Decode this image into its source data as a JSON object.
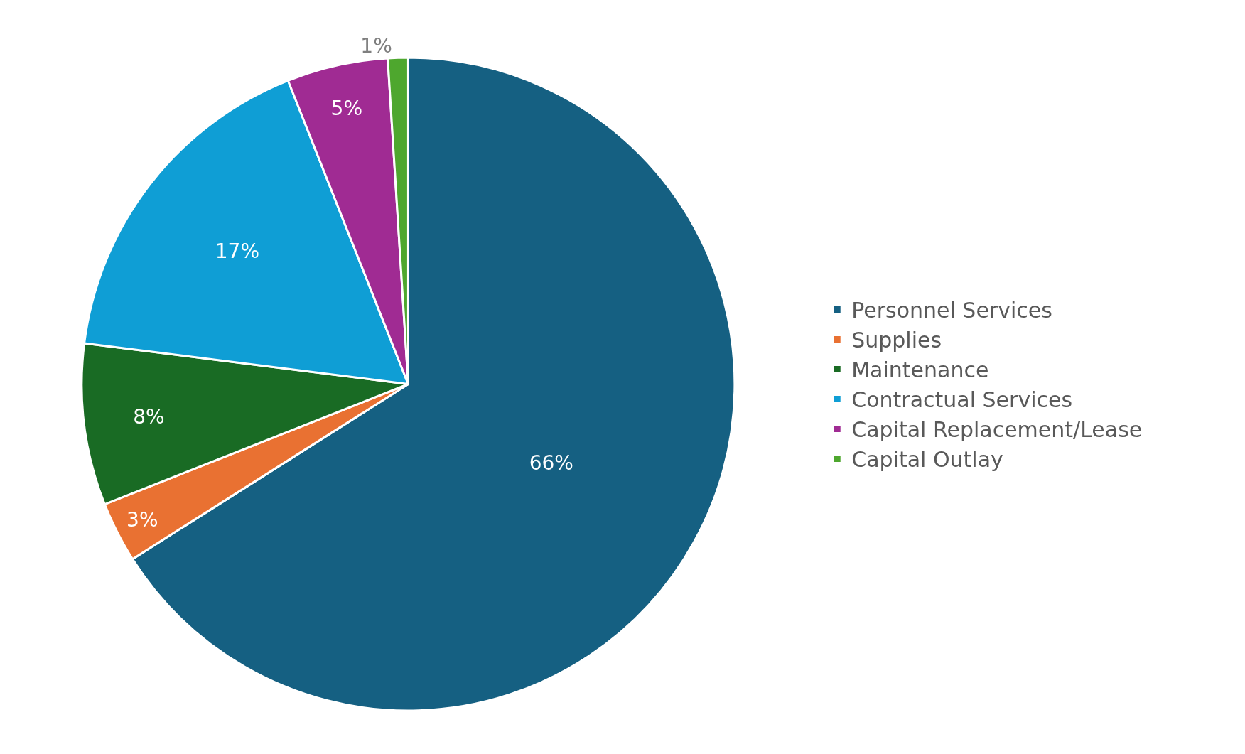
{
  "chart_data": {
    "type": "pie",
    "categories": [
      "Personnel Services",
      "Supplies",
      "Maintenance",
      "Contractual Services",
      "Capital Replacement/Lease",
      "Capital Outlay"
    ],
    "values": [
      66,
      3,
      8,
      17,
      5,
      1
    ],
    "value_labels": [
      "66%",
      "3%",
      "8%",
      "17%",
      "5%",
      "1%"
    ],
    "colors": [
      "#156082",
      "#e97132",
      "#196b24",
      "#0f9ed5",
      "#a02b93",
      "#4ea72e"
    ],
    "legend": "right"
  }
}
